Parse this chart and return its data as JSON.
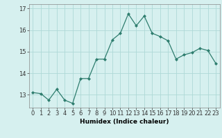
{
  "x": [
    0,
    1,
    2,
    3,
    4,
    5,
    6,
    7,
    8,
    9,
    10,
    11,
    12,
    13,
    14,
    15,
    16,
    17,
    18,
    19,
    20,
    21,
    22,
    23
  ],
  "y": [
    13.1,
    13.05,
    12.75,
    13.25,
    12.75,
    12.6,
    13.75,
    13.75,
    14.65,
    14.65,
    15.55,
    15.85,
    16.75,
    16.2,
    16.65,
    15.85,
    15.7,
    15.5,
    14.65,
    14.85,
    14.95,
    15.15,
    15.05,
    14.45
  ],
  "line_color": "#2e7d6e",
  "marker": "D",
  "marker_size": 2,
  "bg_color": "#d6f0ef",
  "grid_color": "#aed9d7",
  "xlabel": "Humidex (Indice chaleur)",
  "xlim": [
    -0.5,
    23.5
  ],
  "ylim": [
    12.4,
    17.2
  ],
  "yticks": [
    13,
    14,
    15,
    16,
    17
  ],
  "xticks": [
    0,
    1,
    2,
    3,
    4,
    5,
    6,
    7,
    8,
    9,
    10,
    11,
    12,
    13,
    14,
    15,
    16,
    17,
    18,
    19,
    20,
    21,
    22,
    23
  ],
  "xlabel_fontsize": 6.5,
  "tick_fontsize": 6
}
